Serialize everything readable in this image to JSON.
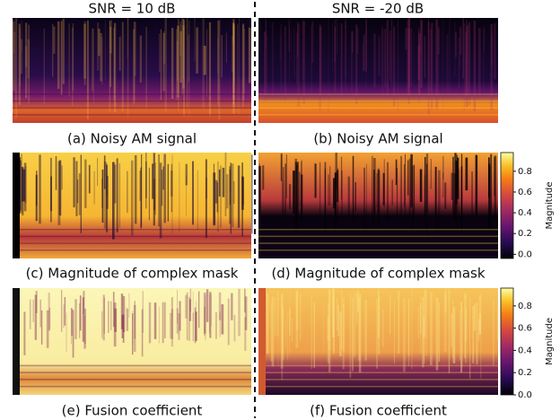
{
  "columns": [
    "SNR = 10 dB",
    "SNR = -20 dB"
  ],
  "panels": [
    {
      "caption": "(a) Noisy AM signal"
    },
    {
      "caption": "(b) Noisy AM signal"
    },
    {
      "caption": "(c) Magnitude of complex mask"
    },
    {
      "caption": "(d) Magnitude of complex mask"
    },
    {
      "caption": "(e) Fusion coefficient"
    },
    {
      "caption": "(f) Fusion coefficient"
    }
  ],
  "colorbars": [
    {
      "label": "Magnitude",
      "ylim": [
        -0.04,
        0.98
      ],
      "yticks": [
        {
          "value": 0,
          "label": "0.0"
        },
        0.2,
        0.4,
        0.6,
        0.8
      ]
    },
    {
      "label": "Magnitude",
      "ylim": [
        0,
        0.96
      ],
      "yticks": [
        {
          "value": 0,
          "label": "0.0"
        },
        0.2,
        0.4,
        0.6,
        0.8
      ]
    }
  ]
}
